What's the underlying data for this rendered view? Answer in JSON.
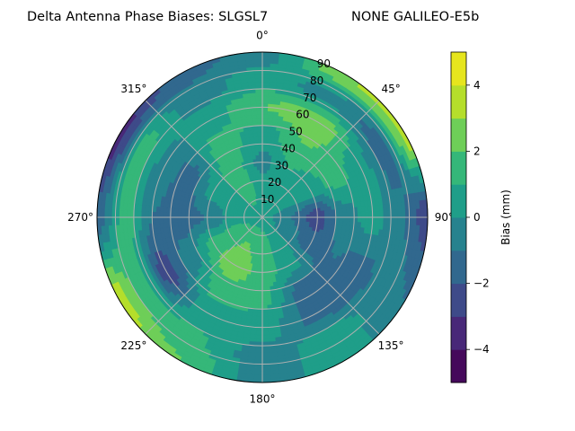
{
  "chart_data": {
    "type": "polar-contour",
    "title_left": "Delta Antenna Phase Biases: SLGSL7",
    "title_right": "NONE GALILEO-E5b",
    "angular_tick_labels": [
      "0°",
      "45°",
      "90°",
      "135°",
      "180°",
      "225°",
      "270°",
      "315°"
    ],
    "angular_ticks": [
      0,
      45,
      90,
      135,
      180,
      225,
      270,
      315
    ],
    "radial_tick_labels": [
      "10",
      "20",
      "30",
      "40",
      "50",
      "60",
      "70",
      "80",
      "90"
    ],
    "radial_ticks": [
      10,
      20,
      30,
      40,
      50,
      60,
      70,
      80,
      90
    ],
    "rlim": [
      0,
      90
    ],
    "theta_direction": "clockwise",
    "theta_zero": "top",
    "grid": true,
    "colorbar": {
      "label": "Bias (mm)",
      "levels": [
        -5,
        -4,
        -3,
        -2,
        -1,
        0,
        1,
        2,
        3,
        4,
        5
      ],
      "tick_values": [
        -4,
        -2,
        0,
        2,
        4
      ],
      "tick_labels": [
        "−4",
        "−2",
        "0",
        "2",
        "4"
      ],
      "colormap": "viridis",
      "colors": [
        "#45095b",
        "#482878",
        "#3e4a89",
        "#31688e",
        "#26828e",
        "#1f9e89",
        "#35b779",
        "#6ece58",
        "#b5de2b",
        "#e6e51d"
      ]
    },
    "grid_azimuths": [
      0,
      30,
      60,
      90,
      120,
      150,
      180,
      210,
      240,
      270,
      300,
      330
    ],
    "grid_radii": [
      0,
      15,
      30,
      45,
      60,
      75,
      90
    ],
    "values": [
      [
        0.5,
        0.5,
        -0.3,
        0.5,
        2,
        0.5,
        -0.5
      ],
      [
        0.5,
        0.5,
        1,
        2,
        2.8,
        -0.5,
        3
      ],
      [
        0.5,
        0.3,
        0.5,
        1.5,
        0.5,
        -1.5,
        3.5
      ],
      [
        0.5,
        -1,
        -2.5,
        -0.5,
        0.5,
        -0.8,
        -2.5
      ],
      [
        0.5,
        -0.5,
        -1.5,
        -1,
        -1.5,
        -0.5,
        -1
      ],
      [
        0.5,
        0.5,
        0.5,
        -1.5,
        -1.5,
        0.5,
        0.5
      ],
      [
        0.5,
        1.5,
        1.5,
        1.2,
        0.5,
        -0.5,
        -0.5
      ],
      [
        0.5,
        2,
        2.8,
        1.5,
        0.5,
        1.2,
        2
      ],
      [
        0.5,
        1.5,
        1.5,
        -0.5,
        -2.5,
        1.5,
        3.5
      ],
      [
        0.5,
        0.5,
        -1,
        -1.5,
        -1,
        1.5,
        -1.5
      ],
      [
        0.5,
        0.5,
        0.5,
        -1.5,
        -0.5,
        1.5,
        -3.5
      ],
      [
        0.5,
        1.5,
        1.5,
        1.5,
        0.5,
        -0.5,
        -1.5
      ]
    ]
  }
}
